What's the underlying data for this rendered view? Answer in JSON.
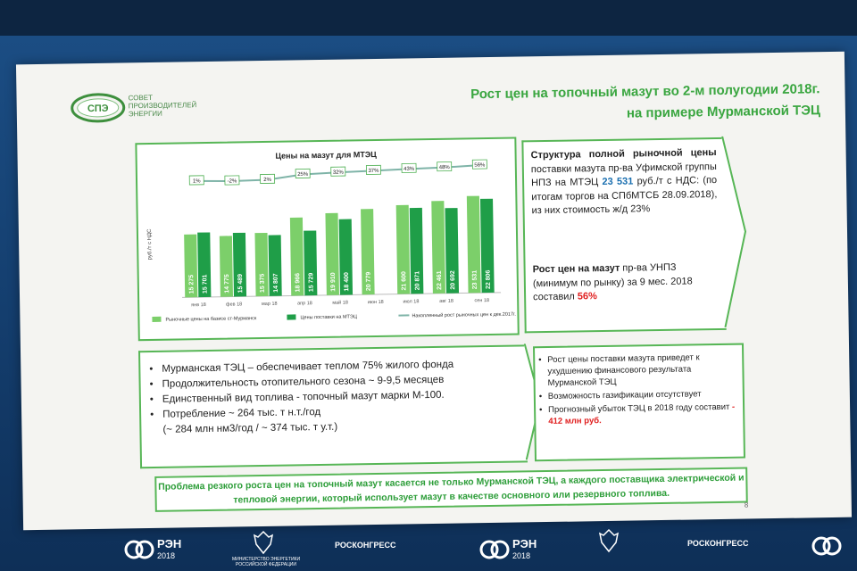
{
  "header": {
    "logo_text": "СПЭ",
    "org_lines": [
      "СОВЕТ",
      "ПРОИЗВОДИТЕЛЕЙ",
      "ЭНЕРГИИ"
    ],
    "title_line1": "Рост цен на топочный мазут во 2-м полугодии 2018г.",
    "title_line2": "на примере Мурманской ТЭЦ"
  },
  "chart_data": {
    "type": "bar",
    "title": "Цены на мазут для МТЭЦ",
    "ylabel": "руб./т с НДС",
    "categories": [
      "янв 18",
      "фев 18",
      "мар 18",
      "апр 18",
      "май 18",
      "июн 18",
      "июл 18",
      "авг 18",
      "сен 18"
    ],
    "series": [
      {
        "name": "Рыночные цены на базисе ст-Мурманск",
        "color": "#7ccf6a",
        "values": [
          15275,
          14775,
          15375,
          18966,
          19910,
          20779,
          21600,
          22461,
          23531
        ]
      },
      {
        "name": "Цены поставки на МТЭЦ",
        "color": "#1f9e48",
        "values": [
          15701,
          15489,
          14807,
          15729,
          18400,
          null,
          20871,
          20692,
          22806
        ]
      },
      {
        "name": "Накопленный рост рыночных цен к дек.2017г.",
        "color": "#7fb4a8",
        "type": "line",
        "values": [
          1,
          -2,
          2,
          25,
          32,
          37,
          43,
          48,
          56
        ],
        "labels": [
          "1%",
          "-2%",
          "2%",
          "25%",
          "32%",
          "37%",
          "43%",
          "48%",
          "56%"
        ]
      }
    ],
    "ylim": [
      0,
      26000
    ],
    "legend": "bottom"
  },
  "structure": {
    "heading": "Структура полной рыночной цены",
    "text1": "поставки мазута пр-ва Уфимской группы НПЗ на МТЭЦ",
    "price": "23 531",
    "text2": "руб./т с НДС: (по итогам торгов на СПбМТСБ 28.09.2018), из них стоимость ж/д 23%",
    "growth_heading": "Рост цен на мазут",
    "growth_text": "пр-ва УНПЗ (минимум по рынку) за 9 мес. 2018 составил",
    "growth_value": "56%"
  },
  "facts": [
    "Мурманская ТЭЦ – обеспечивает теплом 75% жилого фонда",
    "Продолжительность отопительного сезона ~ 9-9,5 месяцев",
    "Единственный вид топлива - топочный мазут марки М-100.",
    "Потребление ~ 264 тыс. т н.т./год",
    "(~ 284 млн нм3/год / ~ 374 тыс. т у.т.)"
  ],
  "consequences": [
    "Рост цены поставки мазута приведет к ухудшению финансового результата Мурманской ТЭЦ",
    "Возможность газификации отсутствует",
    "Прогнозный убыток ТЭЦ в 2018 году составит"
  ],
  "loss_value": "- 412 млн руб.",
  "banner": "Проблема резкого роста цен на топочный мазут касается не только Мурманской ТЭЦ, а каждого поставщика электрической и тепловой энергии, который использует мазут в качестве основного или резервного топлива.",
  "slide_number": "8",
  "footer": {
    "brand1": "РЭН",
    "year": "2018",
    "brand2": "РОСКОНГРЕСС",
    "ministry": "МИНИСТЕРСТВО ЭНЕРГЕТИКИ РОССИЙСКОЙ ФЕДЕРАЦИИ"
  }
}
